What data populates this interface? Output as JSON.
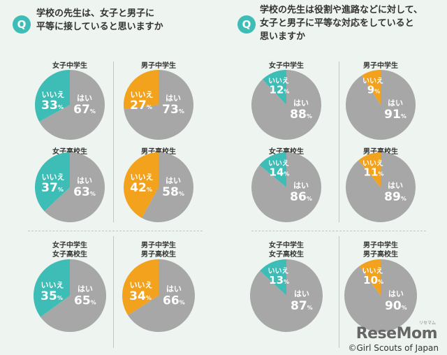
{
  "questions": {
    "q1": {
      "badge": "Q",
      "line1": "学校の先生は、女子と男子に",
      "line2": "平等に接していると思いますか"
    },
    "q2": {
      "badge": "Q",
      "line1": "学校の先生は役割や進路などに対して、",
      "line2": "女子と男子に平等な対応をしていると",
      "line3": "思いますか"
    }
  },
  "labels": {
    "no": "いいえ",
    "yes": "はい",
    "pct": "%"
  },
  "colors": {
    "yes": "#a7a7a7",
    "no_girls": "#3dbdb5",
    "no_boys": "#f2a21c",
    "background": "#eef4ef"
  },
  "chart_data": [
    {
      "type": "pie",
      "question": "q1",
      "title": [
        "女子中学生"
      ],
      "series": [
        {
          "name": "いいえ",
          "value": 33
        },
        {
          "name": "はい",
          "value": 67
        }
      ],
      "no_color": "#3dbdb5"
    },
    {
      "type": "pie",
      "question": "q1",
      "title": [
        "男子中学生"
      ],
      "series": [
        {
          "name": "いいえ",
          "value": 27
        },
        {
          "name": "はい",
          "value": 73
        }
      ],
      "no_color": "#f2a21c"
    },
    {
      "type": "pie",
      "question": "q1",
      "title": [
        "女子高校生"
      ],
      "series": [
        {
          "name": "いいえ",
          "value": 37
        },
        {
          "name": "はい",
          "value": 63
        }
      ],
      "no_color": "#3dbdb5"
    },
    {
      "type": "pie",
      "question": "q1",
      "title": [
        "男子高校生"
      ],
      "series": [
        {
          "name": "いいえ",
          "value": 42
        },
        {
          "name": "はい",
          "value": 58
        }
      ],
      "no_color": "#f2a21c"
    },
    {
      "type": "pie",
      "question": "q1",
      "title": [
        "女子中学生",
        "女子高校生"
      ],
      "series": [
        {
          "name": "いいえ",
          "value": 35
        },
        {
          "name": "はい",
          "value": 65
        }
      ],
      "no_color": "#3dbdb5"
    },
    {
      "type": "pie",
      "question": "q1",
      "title": [
        "男子中学生",
        "男子高校生"
      ],
      "series": [
        {
          "name": "いいえ",
          "value": 34
        },
        {
          "name": "はい",
          "value": 66
        }
      ],
      "no_color": "#f2a21c"
    },
    {
      "type": "pie",
      "question": "q2",
      "title": [
        "女子中学生"
      ],
      "series": [
        {
          "name": "いいえ",
          "value": 12
        },
        {
          "name": "はい",
          "value": 88
        }
      ],
      "no_color": "#3dbdb5"
    },
    {
      "type": "pie",
      "question": "q2",
      "title": [
        "男子中学生"
      ],
      "series": [
        {
          "name": "いいえ",
          "value": 9
        },
        {
          "name": "はい",
          "value": 91
        }
      ],
      "no_color": "#f2a21c"
    },
    {
      "type": "pie",
      "question": "q2",
      "title": [
        "女子高校生"
      ],
      "series": [
        {
          "name": "いいえ",
          "value": 14
        },
        {
          "name": "はい",
          "value": 86
        }
      ],
      "no_color": "#3dbdb5"
    },
    {
      "type": "pie",
      "question": "q2",
      "title": [
        "男子高校生"
      ],
      "series": [
        {
          "name": "いいえ",
          "value": 11
        },
        {
          "name": "はい",
          "value": 89
        }
      ],
      "no_color": "#f2a21c"
    },
    {
      "type": "pie",
      "question": "q2",
      "title": [
        "女子中学生",
        "女子高校生"
      ],
      "series": [
        {
          "name": "いいえ",
          "value": 13
        },
        {
          "name": "はい",
          "value": 87
        }
      ],
      "no_color": "#3dbdb5"
    },
    {
      "type": "pie",
      "question": "q2",
      "title": [
        "男子中学生",
        "男子高校生"
      ],
      "series": [
        {
          "name": "いいえ",
          "value": 10
        },
        {
          "name": "はい",
          "value": 90
        }
      ],
      "no_color": "#f2a21c"
    }
  ],
  "footer": {
    "brand": "ReseMom",
    "brand_ruby": "リセマム",
    "copyright": "©Girl Scouts of Japan"
  }
}
